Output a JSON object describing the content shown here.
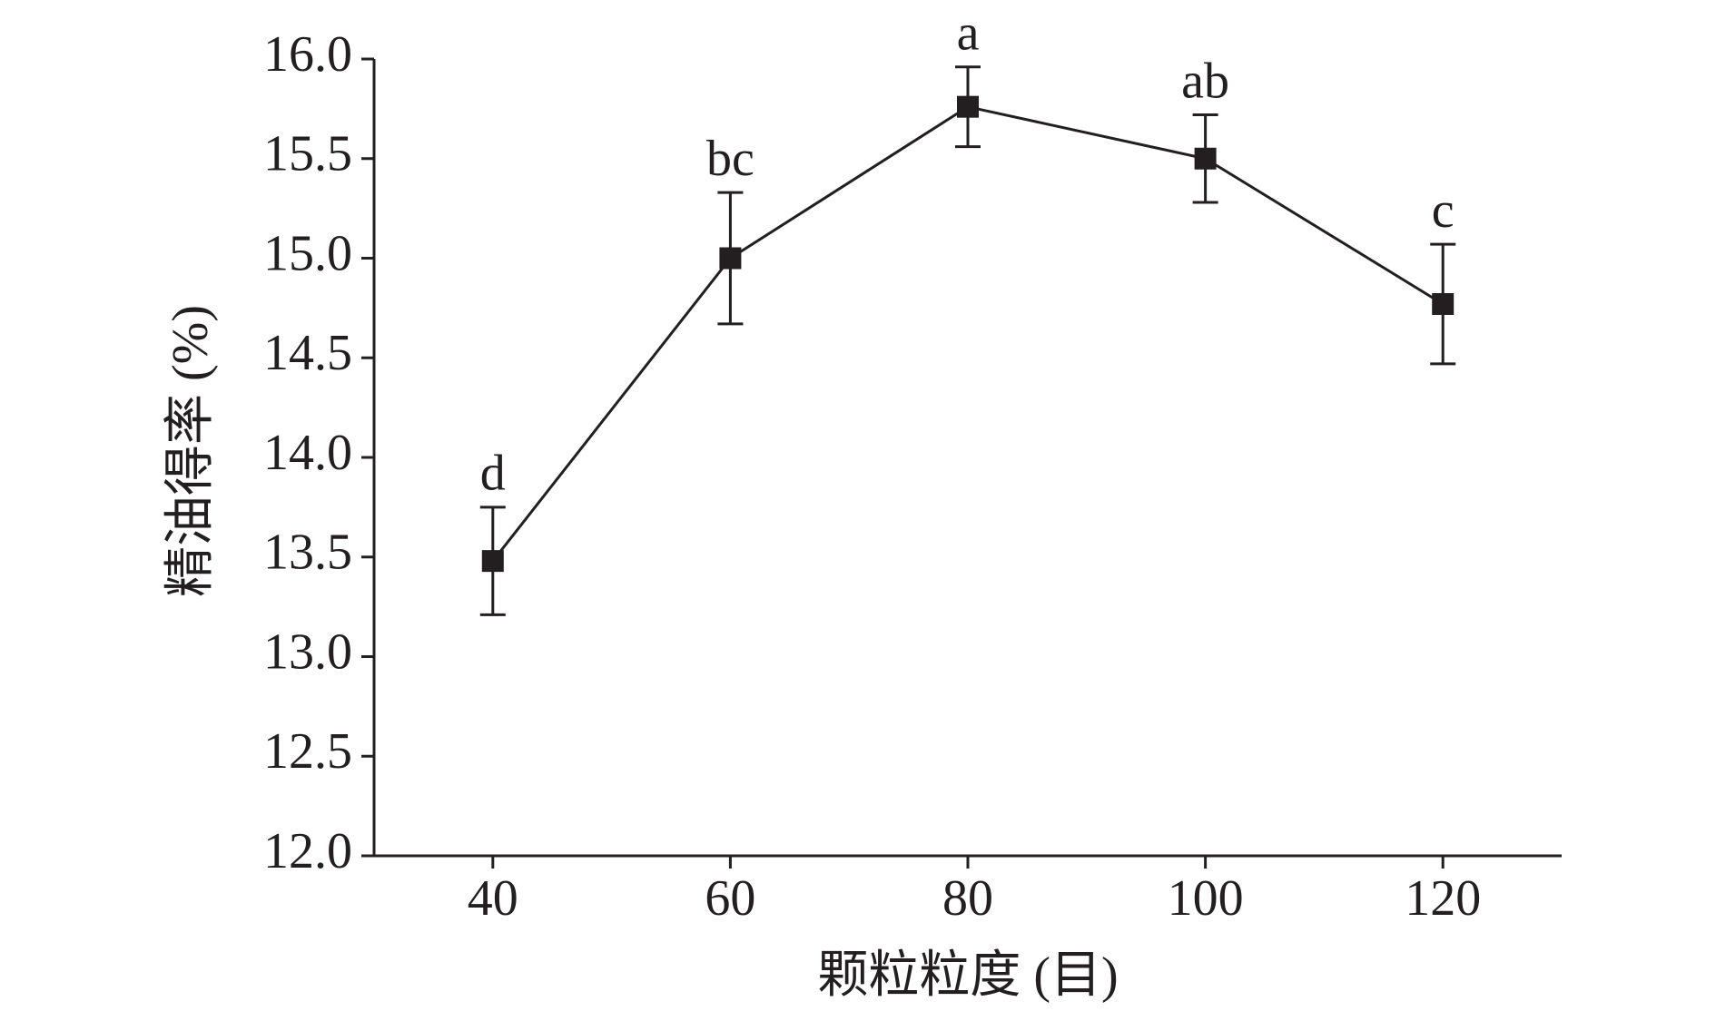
{
  "chart_data": {
    "type": "line",
    "x_label": "颗粒粒度 (目)",
    "y_label": "精油得率 (%)",
    "x": [
      40,
      60,
      80,
      100,
      120
    ],
    "series": [
      {
        "color": "#231f20",
        "values": [
          13.48,
          15.0,
          15.76,
          15.5,
          14.77
        ],
        "errors": [
          0.27,
          0.33,
          0.2,
          0.22,
          0.3
        ],
        "labels": [
          "d",
          "bc",
          "a",
          "ab",
          "c"
        ]
      }
    ],
    "xlim": [
      30,
      130
    ],
    "xticks": [
      40,
      60,
      80,
      100,
      120
    ],
    "ylim": [
      12,
      16
    ],
    "yticks": [
      {
        "value": 12,
        "label": "12.0"
      },
      {
        "value": 12.5,
        "label": "12.5"
      },
      {
        "value": 13,
        "label": "13.0"
      },
      {
        "value": 13.5,
        "label": "13.5"
      },
      {
        "value": 14,
        "label": "14.0"
      },
      {
        "value": 14.5,
        "label": "14.5"
      },
      {
        "value": 15,
        "label": "15.0"
      },
      {
        "value": 15.5,
        "label": "15.5"
      },
      {
        "value": 16,
        "label": "16.0"
      }
    ],
    "grid": false
  }
}
